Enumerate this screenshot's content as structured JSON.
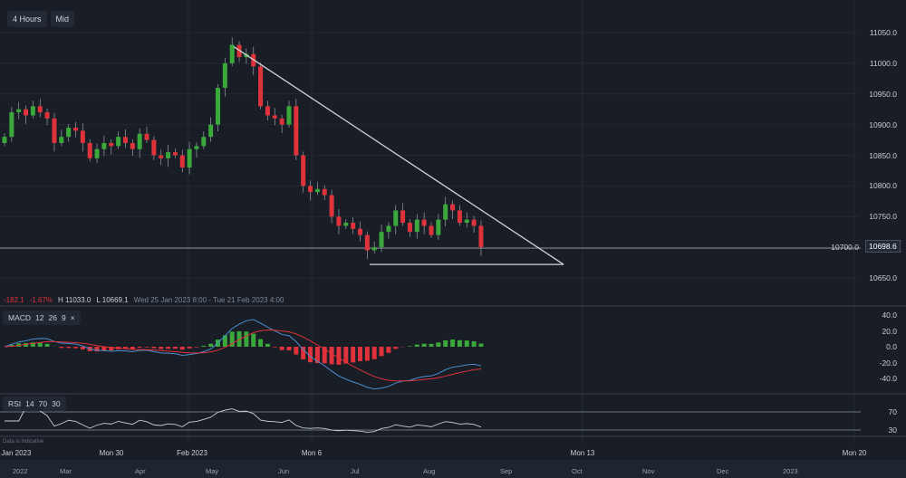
{
  "toolbar": {
    "interval": "4 Hours",
    "price_type": "Mid"
  },
  "info": {
    "change": "-182.1",
    "change_pct": "-1.67%",
    "high": "H 11033.0",
    "low": "L 10669.1",
    "range": "Wed 25 Jan 2023 8:00 - Tue 21 Feb 2023 4:00"
  },
  "current_price": "10698.6",
  "macd_legend": {
    "name": "MACD",
    "fast": "12",
    "slow": "26",
    "signal": "9",
    "close": "×"
  },
  "rsi_legend": {
    "name": "RSI",
    "period": "14",
    "upper": "70",
    "lower": "30"
  },
  "disclaimer": "Data is indicative",
  "colors": {
    "up": "#3aa83a",
    "down": "#e0323a",
    "macd": "#4a8fd0",
    "signal": "#e0323a",
    "rsi": "#c9ced6",
    "trend": "#cfd3d9"
  },
  "chart_data": {
    "type": "candlestick",
    "closes": [
      10880,
      10920,
      10925,
      10915,
      10930,
      10920,
      10910,
      10870,
      10880,
      10895,
      10890,
      10870,
      10845,
      10860,
      10870,
      10865,
      10880,
      10870,
      10860,
      10885,
      10875,
      10850,
      10845,
      10855,
      10850,
      10830,
      10860,
      10865,
      10880,
      10900,
      10960,
      11000,
      11030,
      11010,
      11015,
      10995,
      10930,
      10915,
      10910,
      10900,
      10930,
      10850,
      10800,
      10790,
      10795,
      10785,
      10750,
      10735,
      10740,
      10730,
      10720,
      10695,
      10700,
      10725,
      10735,
      10760,
      10740,
      10725,
      10745,
      10735,
      10720,
      10745,
      10770,
      10760,
      10740,
      10745,
      10735,
      10700
    ],
    "price_ticks": [
      11050,
      11000,
      10950,
      10900,
      10850,
      10800,
      10750,
      10700,
      10650
    ],
    "ylim": [
      10630,
      11070
    ],
    "trendlines": [
      {
        "from": 11027,
        "to": 10672,
        "label": "descending"
      },
      {
        "level": 10672,
        "label": "support"
      }
    ],
    "macd_ticks": [
      "40.0",
      "20.0",
      "0.0",
      "-20.0",
      "-40.0"
    ],
    "rsi_ticks": [
      "70",
      "30"
    ],
    "time_labels": [
      "Jan 2023",
      "Mon 30",
      "Feb 2023",
      "Mon 6",
      "Mon 13",
      "Mon 20"
    ],
    "navigator_labels": [
      "2022",
      "Mar",
      "Apr",
      "May",
      "Jun",
      "Jul",
      "Aug",
      "Sep",
      "Oct",
      "Nov",
      "Dec",
      "2023"
    ]
  }
}
